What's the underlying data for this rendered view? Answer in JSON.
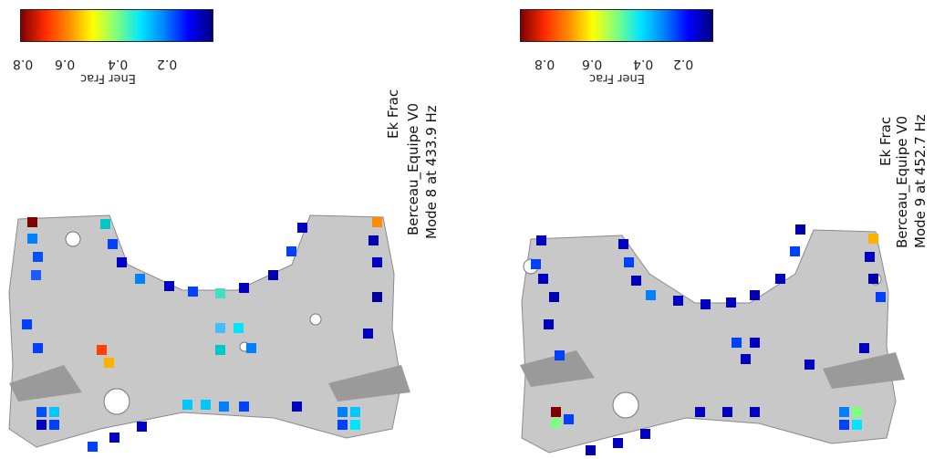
{
  "colors": {
    "part_fill": "#c8c8c8",
    "part_mesh": "#9a9a9a",
    "colormap": [
      "#800000",
      "#ff2a00",
      "#ff8c00",
      "#ffff00",
      "#7fff7f",
      "#00e5ff",
      "#0080ff",
      "#0000ff",
      "#000080"
    ]
  },
  "panels": [
    {
      "colorbar": {
        "ticks": [
          "0.8",
          "0.6",
          "0.4",
          "0.2"
        ],
        "title": "Ener Frac"
      },
      "labels": {
        "line1": "Ek Frac",
        "line2": "Berceau_Equipe V0",
        "line3": "Mode 8 at 433.9 Hz"
      }
    },
    {
      "colorbar": {
        "ticks": [
          "0.8",
          "0.6",
          "0.4",
          "0.2"
        ],
        "title": "Ener Frac"
      },
      "labels": {
        "line1": "Ek Frac",
        "line2": "Berceau_Equipe V0",
        "line3": "Mode 9 at 452.7 Hz"
      }
    }
  ]
}
